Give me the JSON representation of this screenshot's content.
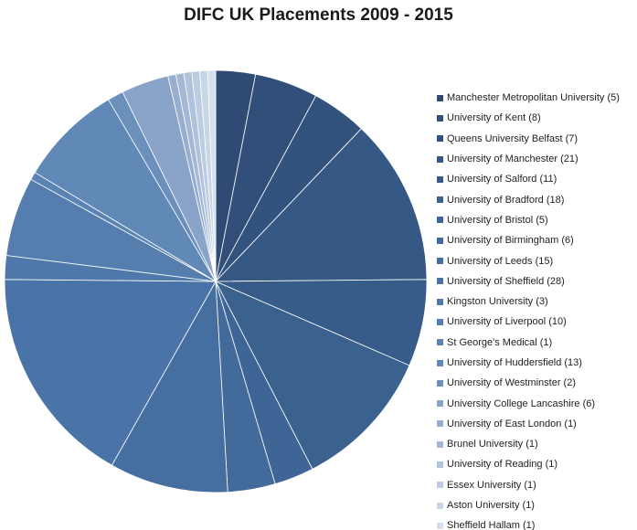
{
  "chart_data": {
    "type": "pie",
    "title": "DIFC UK Placements 2009 - 2015",
    "legend_position": "right",
    "slices": [
      {
        "label": "Manchester Metropolitan University (5)",
        "value": 5,
        "color": "#2f4b73"
      },
      {
        "label": "University of Kent (8)",
        "value": 8,
        "color": "#314f79"
      },
      {
        "label": "Queens University Belfast (7)",
        "value": 7,
        "color": "#33537f"
      },
      {
        "label": "University of Manchester (21)",
        "value": 21,
        "color": "#355884"
      },
      {
        "label": "University of Salford (11)",
        "value": 11,
        "color": "#385c89"
      },
      {
        "label": "University of Bradford (18)",
        "value": 18,
        "color": "#3b618f"
      },
      {
        "label": "University of Bristol (5)",
        "value": 5,
        "color": "#3e6595"
      },
      {
        "label": "University of Birmingham (6)",
        "value": 6,
        "color": "#426a9b"
      },
      {
        "label": "University of Leeds (15)",
        "value": 15,
        "color": "#466fa1"
      },
      {
        "label": "University of Sheffield (28)",
        "value": 28,
        "color": "#4a74a7"
      },
      {
        "label": "Kingston University (3)",
        "value": 3,
        "color": "#4f79ab"
      },
      {
        "label": "University of Liverpool (10)",
        "value": 10,
        "color": "#557eaf"
      },
      {
        "label": "St George's Medical (1)",
        "value": 1,
        "color": "#5b83b3"
      },
      {
        "label": "University of Huddersfield (13)",
        "value": 13,
        "color": "#6189b7"
      },
      {
        "label": "University of Westminster (2)",
        "value": 2,
        "color": "#6a90bb"
      },
      {
        "label": "University College Lancashire (6)",
        "value": 6,
        "color": "#8aa3c9"
      },
      {
        "label": "University of East London (1)",
        "value": 1,
        "color": "#97aed0"
      },
      {
        "label": "Brunel University (1)",
        "value": 1,
        "color": "#a4b8d6"
      },
      {
        "label": "University of Reading (1)",
        "value": 1,
        "color": "#b1c2dc"
      },
      {
        "label": "Essex University (1)",
        "value": 1,
        "color": "#bdcce2"
      },
      {
        "label": "Aston University (1)",
        "value": 1,
        "color": "#c9d6e8"
      },
      {
        "label": "Sheffield Hallam (1)",
        "value": 1,
        "color": "#d5e0ee"
      }
    ]
  }
}
